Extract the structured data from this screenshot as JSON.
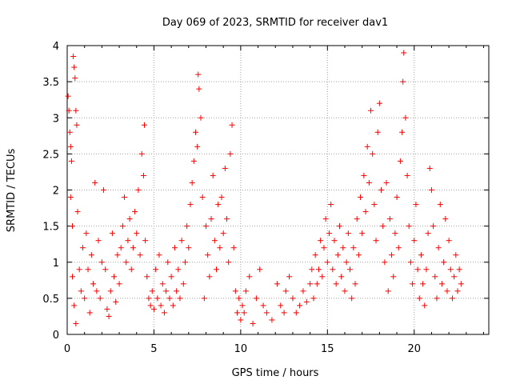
{
  "chart_data": {
    "type": "scatter",
    "title": "Day 069 of 2023, SRMTID for receiver dav1",
    "xlabel": "GPS time / hours",
    "ylabel": "SRMTID / TECUs",
    "xlim": [
      0,
      24.3
    ],
    "ylim": [
      0,
      4
    ],
    "xticks": [
      "0",
      "5",
      "10",
      "15",
      "20"
    ],
    "yticks": [
      "0",
      "0.5",
      "1",
      "1.5",
      "2",
      "2.5",
      "3",
      "3.5",
      "4"
    ],
    "grid": true,
    "marker": "plus",
    "series": [
      {
        "name": "SRMTID",
        "color": "#ff0000",
        "points": [
          [
            0.05,
            3.3
          ],
          [
            0.1,
            3.1
          ],
          [
            0.15,
            2.8
          ],
          [
            0.2,
            2.6
          ],
          [
            0.2,
            1.9
          ],
          [
            0.25,
            2.4
          ],
          [
            0.3,
            1.5
          ],
          [
            0.35,
            3.85
          ],
          [
            0.4,
            3.7
          ],
          [
            0.45,
            3.55
          ],
          [
            0.5,
            3.1
          ],
          [
            0.55,
            2.9
          ],
          [
            0.3,
            0.8
          ],
          [
            0.4,
            0.4
          ],
          [
            0.5,
            0.15
          ],
          [
            0.6,
            1.7
          ],
          [
            0.7,
            0.9
          ],
          [
            0.8,
            0.6
          ],
          [
            0.9,
            1.2
          ],
          [
            1.0,
            0.5
          ],
          [
            1.1,
            1.4
          ],
          [
            1.2,
            0.9
          ],
          [
            1.3,
            0.3
          ],
          [
            1.4,
            1.1
          ],
          [
            1.5,
            0.7
          ],
          [
            1.6,
            2.1
          ],
          [
            1.7,
            0.6
          ],
          [
            1.8,
            1.3
          ],
          [
            1.9,
            0.5
          ],
          [
            2.0,
            1.0
          ],
          [
            2.1,
            2.0
          ],
          [
            2.2,
            0.9
          ],
          [
            2.3,
            0.35
          ],
          [
            2.4,
            0.25
          ],
          [
            2.5,
            0.6
          ],
          [
            2.6,
            1.4
          ],
          [
            2.7,
            0.8
          ],
          [
            2.8,
            0.45
          ],
          [
            2.9,
            1.1
          ],
          [
            3.0,
            0.7
          ],
          [
            3.1,
            1.2
          ],
          [
            3.2,
            1.5
          ],
          [
            3.3,
            1.9
          ],
          [
            3.4,
            1.0
          ],
          [
            3.5,
            1.3
          ],
          [
            3.6,
            1.6
          ],
          [
            3.7,
            0.9
          ],
          [
            3.8,
            1.2
          ],
          [
            3.9,
            1.7
          ],
          [
            4.0,
            1.4
          ],
          [
            4.1,
            2.0
          ],
          [
            4.2,
            1.1
          ],
          [
            4.3,
            2.5
          ],
          [
            4.4,
            2.2
          ],
          [
            4.45,
            2.9
          ],
          [
            4.5,
            1.3
          ],
          [
            4.6,
            0.8
          ],
          [
            4.7,
            0.5
          ],
          [
            4.8,
            0.4
          ],
          [
            4.9,
            0.6
          ],
          [
            5.0,
            0.35
          ],
          [
            5.1,
            0.9
          ],
          [
            5.2,
            0.5
          ],
          [
            5.3,
            1.1
          ],
          [
            5.4,
            0.4
          ],
          [
            5.5,
            0.7
          ],
          [
            5.6,
            0.3
          ],
          [
            5.7,
            0.6
          ],
          [
            5.8,
            1.0
          ],
          [
            5.9,
            0.5
          ],
          [
            6.0,
            0.8
          ],
          [
            6.1,
            0.4
          ],
          [
            6.2,
            1.2
          ],
          [
            6.3,
            0.6
          ],
          [
            6.4,
            0.9
          ],
          [
            6.5,
            0.5
          ],
          [
            6.6,
            1.3
          ],
          [
            6.7,
            0.7
          ],
          [
            6.8,
            1.0
          ],
          [
            6.9,
            1.5
          ],
          [
            7.0,
            1.2
          ],
          [
            7.1,
            1.8
          ],
          [
            7.2,
            2.1
          ],
          [
            7.3,
            2.4
          ],
          [
            7.4,
            2.8
          ],
          [
            7.5,
            2.6
          ],
          [
            7.55,
            3.6
          ],
          [
            7.6,
            3.4
          ],
          [
            7.7,
            3.0
          ],
          [
            7.8,
            1.9
          ],
          [
            7.9,
            0.5
          ],
          [
            8.0,
            1.5
          ],
          [
            8.1,
            1.1
          ],
          [
            8.2,
            0.8
          ],
          [
            8.3,
            1.6
          ],
          [
            8.4,
            2.2
          ],
          [
            8.5,
            1.3
          ],
          [
            8.6,
            0.9
          ],
          [
            8.7,
            1.8
          ],
          [
            8.8,
            1.2
          ],
          [
            8.9,
            1.9
          ],
          [
            9.0,
            1.4
          ],
          [
            9.1,
            2.3
          ],
          [
            9.2,
            1.6
          ],
          [
            9.3,
            1.0
          ],
          [
            9.4,
            2.5
          ],
          [
            9.5,
            2.9
          ],
          [
            9.6,
            1.2
          ],
          [
            9.7,
            0.6
          ],
          [
            9.8,
            0.3
          ],
          [
            9.9,
            0.5
          ],
          [
            10.0,
            0.2
          ],
          [
            10.1,
            0.4
          ],
          [
            10.2,
            0.3
          ],
          [
            10.3,
            0.6
          ],
          [
            10.5,
            0.8
          ],
          [
            10.7,
            0.15
          ],
          [
            10.9,
            0.5
          ],
          [
            11.1,
            0.9
          ],
          [
            11.3,
            0.4
          ],
          [
            11.5,
            0.3
          ],
          [
            11.8,
            0.2
          ],
          [
            12.1,
            0.7
          ],
          [
            12.3,
            0.4
          ],
          [
            12.5,
            0.3
          ],
          [
            12.6,
            0.6
          ],
          [
            12.8,
            0.8
          ],
          [
            13.0,
            0.5
          ],
          [
            13.2,
            0.3
          ],
          [
            13.4,
            0.4
          ],
          [
            13.6,
            0.6
          ],
          [
            13.8,
            0.45
          ],
          [
            14.0,
            0.7
          ],
          [
            14.1,
            0.9
          ],
          [
            14.2,
            0.5
          ],
          [
            14.3,
            1.1
          ],
          [
            14.4,
            0.7
          ],
          [
            14.5,
            0.9
          ],
          [
            14.6,
            1.3
          ],
          [
            14.7,
            0.8
          ],
          [
            14.8,
            1.2
          ],
          [
            14.9,
            1.6
          ],
          [
            15.0,
            1.0
          ],
          [
            15.1,
            1.4
          ],
          [
            15.2,
            1.8
          ],
          [
            15.3,
            0.9
          ],
          [
            15.4,
            1.3
          ],
          [
            15.5,
            0.7
          ],
          [
            15.6,
            1.1
          ],
          [
            15.7,
            1.5
          ],
          [
            15.8,
            0.8
          ],
          [
            15.9,
            1.2
          ],
          [
            16.0,
            0.6
          ],
          [
            16.1,
            1.0
          ],
          [
            16.2,
            1.4
          ],
          [
            16.3,
            0.9
          ],
          [
            16.4,
            0.5
          ],
          [
            16.5,
            1.2
          ],
          [
            16.6,
            0.7
          ],
          [
            16.7,
            1.6
          ],
          [
            16.8,
            1.1
          ],
          [
            16.9,
            1.9
          ],
          [
            17.0,
            1.4
          ],
          [
            17.1,
            2.2
          ],
          [
            17.2,
            1.7
          ],
          [
            17.3,
            2.6
          ],
          [
            17.4,
            2.1
          ],
          [
            17.5,
            3.1
          ],
          [
            17.6,
            2.5
          ],
          [
            17.7,
            1.8
          ],
          [
            17.8,
            1.3
          ],
          [
            17.9,
            2.8
          ],
          [
            18.0,
            3.2
          ],
          [
            18.1,
            2.0
          ],
          [
            18.2,
            1.5
          ],
          [
            18.3,
            1.0
          ],
          [
            18.4,
            2.1
          ],
          [
            18.5,
            0.6
          ],
          [
            18.6,
            1.6
          ],
          [
            18.7,
            1.1
          ],
          [
            18.8,
            0.8
          ],
          [
            18.9,
            1.4
          ],
          [
            19.0,
            1.9
          ],
          [
            19.1,
            1.2
          ],
          [
            19.2,
            2.4
          ],
          [
            19.3,
            2.8
          ],
          [
            19.35,
            3.5
          ],
          [
            19.4,
            3.9
          ],
          [
            19.5,
            3.0
          ],
          [
            19.6,
            2.2
          ],
          [
            19.7,
            1.5
          ],
          [
            19.8,
            1.0
          ],
          [
            19.9,
            0.7
          ],
          [
            20.0,
            1.3
          ],
          [
            20.1,
            1.8
          ],
          [
            20.2,
            0.9
          ],
          [
            20.3,
            0.5
          ],
          [
            20.4,
            1.1
          ],
          [
            20.5,
            0.7
          ],
          [
            20.6,
            0.4
          ],
          [
            20.7,
            0.9
          ],
          [
            20.8,
            1.4
          ],
          [
            20.9,
            2.3
          ],
          [
            21.0,
            2.0
          ],
          [
            21.1,
            1.5
          ],
          [
            21.2,
            0.8
          ],
          [
            21.3,
            0.5
          ],
          [
            21.4,
            1.2
          ],
          [
            21.5,
            1.8
          ],
          [
            21.6,
            0.7
          ],
          [
            21.7,
            1.0
          ],
          [
            21.8,
            1.6
          ],
          [
            21.9,
            0.6
          ],
          [
            22.0,
            1.3
          ],
          [
            22.1,
            0.9
          ],
          [
            22.2,
            0.5
          ],
          [
            22.3,
            0.8
          ],
          [
            22.4,
            1.1
          ],
          [
            22.5,
            0.6
          ],
          [
            22.6,
            0.9
          ],
          [
            22.7,
            0.7
          ]
        ]
      }
    ]
  }
}
